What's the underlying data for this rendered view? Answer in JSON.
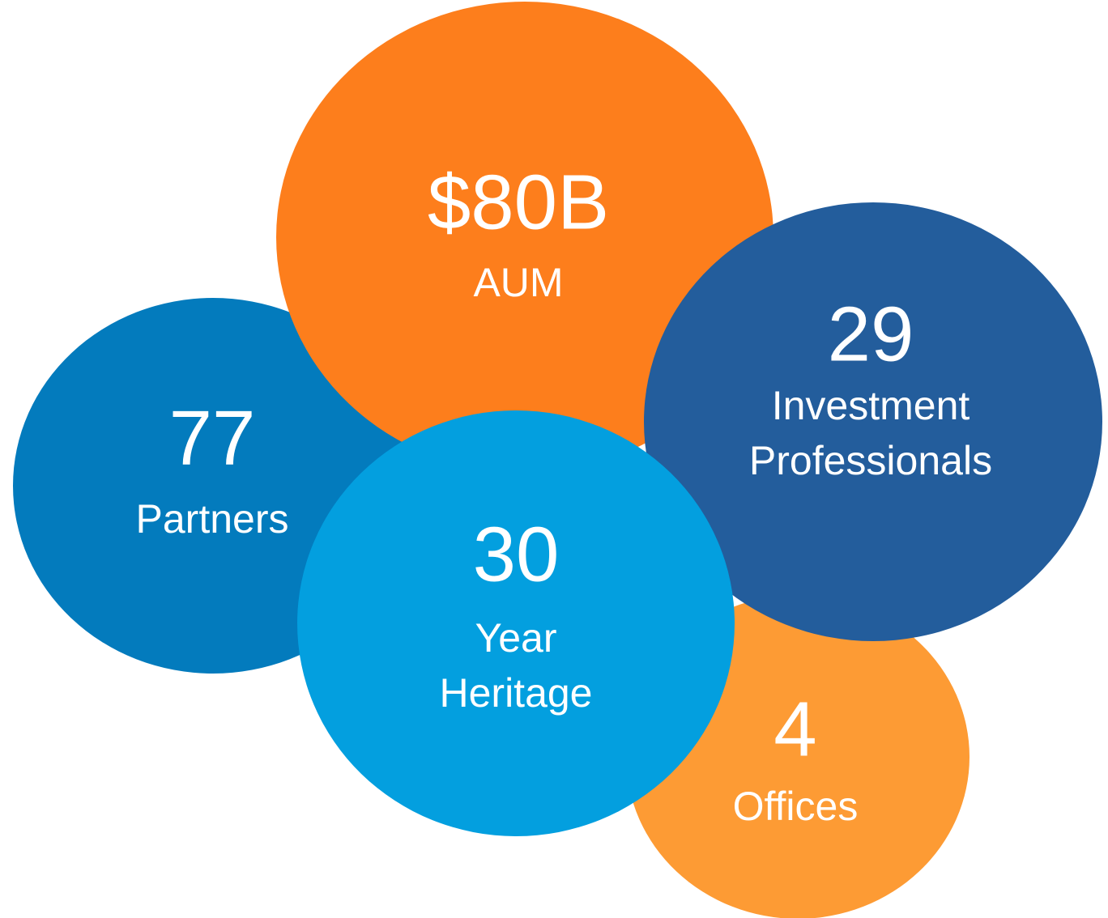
{
  "nodes": [
    {
      "value": "4",
      "label": [
        "Offices"
      ]
    },
    {
      "value": "77",
      "label": [
        "Partners"
      ]
    },
    {
      "value": "$80B",
      "label": [
        "AUM"
      ]
    },
    {
      "value": "29",
      "label": [
        "Investment",
        "Professionals"
      ]
    },
    {
      "value": "30",
      "label": [
        "Year",
        "Heritage"
      ]
    }
  ]
}
